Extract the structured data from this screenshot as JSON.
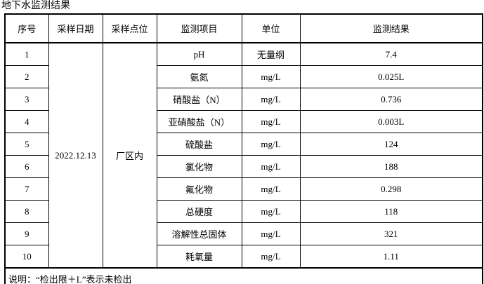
{
  "title": "地下水监测结果",
  "table": {
    "headers": {
      "no": "序号",
      "date": "采样日期",
      "point": "采样点位",
      "item": "监测项目",
      "unit": "单位",
      "result": "监测结果"
    },
    "sample_date": "2022.12.13",
    "sample_point": "厂区内",
    "rows": [
      {
        "no": "1",
        "item": "pH",
        "unit": "无量纲",
        "result": "7.4"
      },
      {
        "no": "2",
        "item": "氨氮",
        "unit": "mg/L",
        "result": "0.025L"
      },
      {
        "no": "3",
        "item": "硝酸盐（N）",
        "unit": "mg/L",
        "result": "0.736"
      },
      {
        "no": "4",
        "item": "亚硝酸盐（N）",
        "unit": "mg/L",
        "result": "0.003L"
      },
      {
        "no": "5",
        "item": "硫酸盐",
        "unit": "mg/L",
        "result": "124"
      },
      {
        "no": "6",
        "item": "氯化物",
        "unit": "mg/L",
        "result": "188"
      },
      {
        "no": "7",
        "item": "氟化物",
        "unit": "mg/L",
        "result": "0.298"
      },
      {
        "no": "8",
        "item": "总硬度",
        "unit": "mg/L",
        "result": "118"
      },
      {
        "no": "9",
        "item": "溶解性总固体",
        "unit": "mg/L",
        "result": "321"
      },
      {
        "no": "10",
        "item": "耗氧量",
        "unit": "mg/L",
        "result": "1.11"
      }
    ],
    "note": "说明：“检出限＋L”表示未检出"
  },
  "colors": {
    "border": "#000000",
    "background": "#ffffff",
    "text": "#000000"
  }
}
